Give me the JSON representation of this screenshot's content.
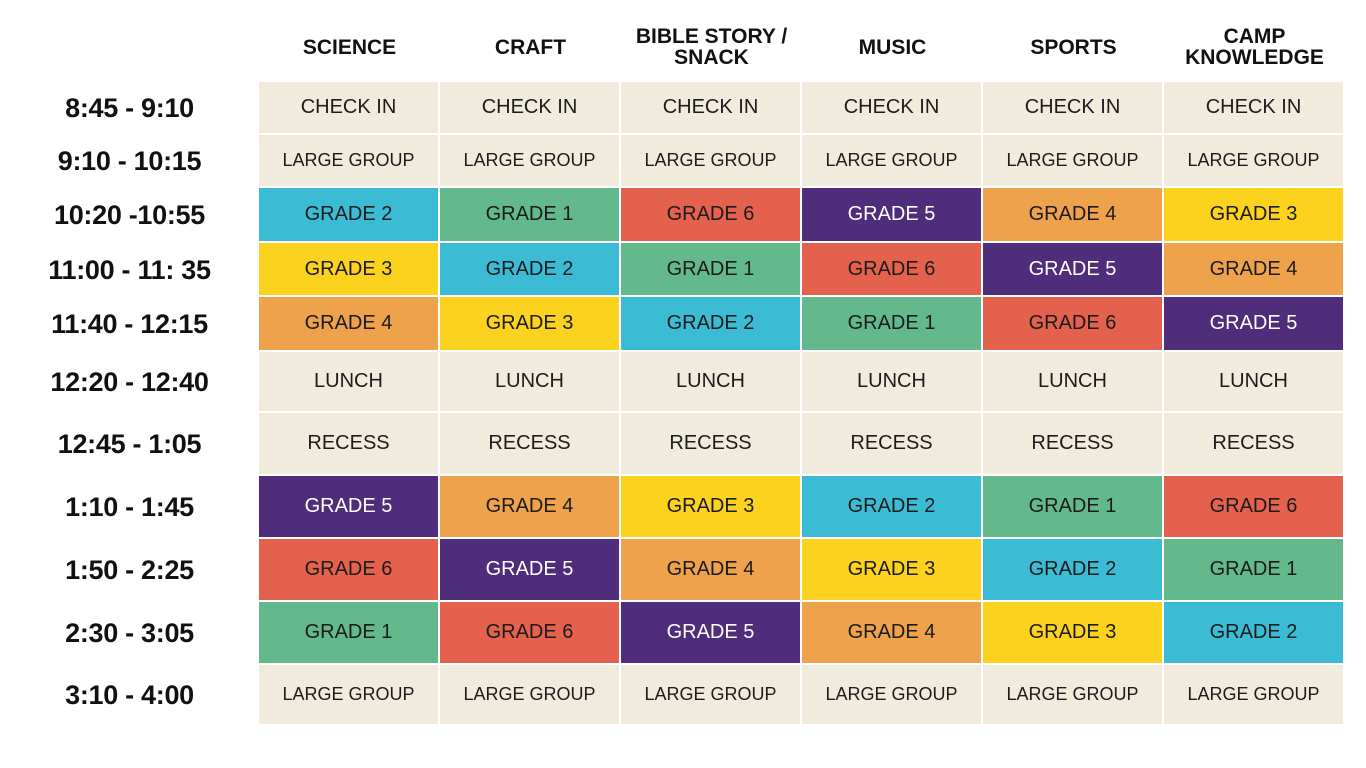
{
  "headers": [
    "SCIENCE",
    "CRAFT",
    "BIBLE STORY / SNACK",
    "MUSIC",
    "SPORTS",
    "CAMP KNOWLEDGE"
  ],
  "rows": [
    {
      "time": "8:45 - 9:10",
      "cells": [
        {
          "text": "CHECK IN",
          "color": "cream"
        },
        {
          "text": "CHECK IN",
          "color": "cream"
        },
        {
          "text": "CHECK IN",
          "color": "cream"
        },
        {
          "text": "CHECK IN",
          "color": "cream"
        },
        {
          "text": "CHECK IN",
          "color": "cream"
        },
        {
          "text": "CHECK IN",
          "color": "cream"
        }
      ]
    },
    {
      "time": "9:10 - 10:15",
      "cells": [
        {
          "text": "LARGE GROUP",
          "color": "cream"
        },
        {
          "text": "LARGE GROUP",
          "color": "cream"
        },
        {
          "text": "LARGE GROUP",
          "color": "cream"
        },
        {
          "text": "LARGE GROUP",
          "color": "cream"
        },
        {
          "text": "LARGE GROUP",
          "color": "cream"
        },
        {
          "text": "LARGE GROUP",
          "color": "cream"
        }
      ]
    },
    {
      "time": "10:20 -10:55",
      "cells": [
        {
          "text": "GRADE 2",
          "color": "blue"
        },
        {
          "text": "GRADE 1",
          "color": "green"
        },
        {
          "text": "GRADE 6",
          "color": "red"
        },
        {
          "text": "GRADE 5",
          "color": "purple"
        },
        {
          "text": "GRADE 4",
          "color": "orange"
        },
        {
          "text": "GRADE 3",
          "color": "yellow"
        }
      ]
    },
    {
      "time": "11:00 - 11: 35",
      "cells": [
        {
          "text": "GRADE 3",
          "color": "yellow"
        },
        {
          "text": "GRADE 2",
          "color": "blue"
        },
        {
          "text": "GRADE 1",
          "color": "green"
        },
        {
          "text": "GRADE 6",
          "color": "red"
        },
        {
          "text": "GRADE 5",
          "color": "purple"
        },
        {
          "text": "GRADE 4",
          "color": "orange"
        }
      ]
    },
    {
      "time": "11:40 - 12:15",
      "cells": [
        {
          "text": "GRADE 4",
          "color": "orange"
        },
        {
          "text": "GRADE 3",
          "color": "yellow"
        },
        {
          "text": "GRADE 2",
          "color": "blue"
        },
        {
          "text": "GRADE 1",
          "color": "green"
        },
        {
          "text": "GRADE 6",
          "color": "red"
        },
        {
          "text": "GRADE 5",
          "color": "purple"
        }
      ]
    },
    {
      "time": "12:20 - 12:40",
      "cells": [
        {
          "text": "LUNCH",
          "color": "cream"
        },
        {
          "text": "LUNCH",
          "color": "cream"
        },
        {
          "text": "LUNCH",
          "color": "cream"
        },
        {
          "text": "LUNCH",
          "color": "cream"
        },
        {
          "text": "LUNCH",
          "color": "cream"
        },
        {
          "text": "LUNCH",
          "color": "cream"
        }
      ]
    },
    {
      "time": "12:45 - 1:05",
      "cells": [
        {
          "text": "RECESS",
          "color": "cream"
        },
        {
          "text": "RECESS",
          "color": "cream"
        },
        {
          "text": "RECESS",
          "color": "cream"
        },
        {
          "text": "RECESS",
          "color": "cream"
        },
        {
          "text": "RECESS",
          "color": "cream"
        },
        {
          "text": "RECESS",
          "color": "cream"
        }
      ]
    },
    {
      "time": "1:10 - 1:45",
      "cells": [
        {
          "text": "GRADE 5",
          "color": "purple"
        },
        {
          "text": "GRADE 4",
          "color": "orange"
        },
        {
          "text": "GRADE 3",
          "color": "yellow"
        },
        {
          "text": "GRADE 2",
          "color": "blue"
        },
        {
          "text": "GRADE 1",
          "color": "green"
        },
        {
          "text": "GRADE 6",
          "color": "red"
        }
      ]
    },
    {
      "time": "1:50 - 2:25",
      "cells": [
        {
          "text": "GRADE 6",
          "color": "red"
        },
        {
          "text": "GRADE 5",
          "color": "purple"
        },
        {
          "text": "GRADE 4",
          "color": "orange"
        },
        {
          "text": "GRADE 3",
          "color": "yellow"
        },
        {
          "text": "GRADE 2",
          "color": "blue"
        },
        {
          "text": "GRADE 1",
          "color": "green"
        }
      ]
    },
    {
      "time": "2:30 - 3:05",
      "cells": [
        {
          "text": "GRADE 1",
          "color": "green"
        },
        {
          "text": "GRADE 6",
          "color": "red"
        },
        {
          "text": "GRADE 5",
          "color": "purple"
        },
        {
          "text": "GRADE 4",
          "color": "orange"
        },
        {
          "text": "GRADE 3",
          "color": "yellow"
        },
        {
          "text": "GRADE 2",
          "color": "blue"
        }
      ]
    },
    {
      "time": "3:10 - 4:00",
      "cells": [
        {
          "text": "LARGE GROUP",
          "color": "cream"
        },
        {
          "text": "LARGE GROUP",
          "color": "cream"
        },
        {
          "text": "LARGE GROUP",
          "color": "cream"
        },
        {
          "text": "LARGE GROUP",
          "color": "cream"
        },
        {
          "text": "LARGE GROUP",
          "color": "cream"
        },
        {
          "text": "LARGE GROUP",
          "color": "cream"
        }
      ]
    }
  ],
  "colors": {
    "cream": "#f1ebdd",
    "blue": "#3bbbd4",
    "green": "#63b98b",
    "red": "#e4624d",
    "purple": "#4f2d7a",
    "orange": "#efa24c",
    "yellow": "#fbd21d"
  }
}
